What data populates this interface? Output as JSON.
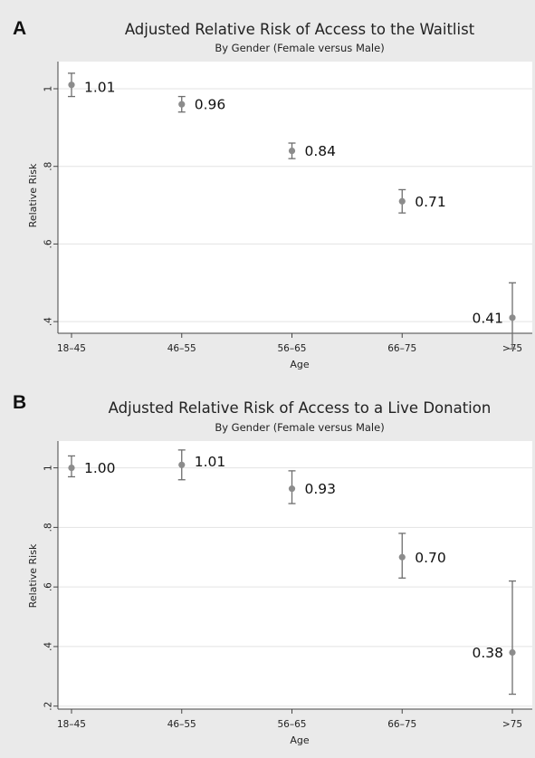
{
  "chart_data": [
    {
      "type": "scatter",
      "panel": "A",
      "title": "Adjusted Relative Risk of Access to the Waitlist",
      "subtitle": "By Gender (Female versus Male)",
      "xlabel": "Age",
      "ylabel": "Relative Risk",
      "categories": [
        "18–45",
        "46–55",
        "56–65",
        "66–75",
        ">75"
      ],
      "values": [
        1.01,
        0.96,
        0.84,
        0.71,
        0.41
      ],
      "ci_lower": [
        0.98,
        0.94,
        0.82,
        0.68,
        0.33
      ],
      "ci_upper": [
        1.04,
        0.98,
        0.86,
        0.74,
        0.5
      ],
      "point_labels": [
        "1.01",
        "0.96",
        "0.84",
        "0.71",
        "0.41"
      ],
      "ylim": [
        0.37,
        1.07
      ],
      "yticks": [
        0.4,
        0.6,
        0.8,
        1.0
      ],
      "ytick_labels": [
        ".4",
        ".6",
        ".8",
        "1"
      ],
      "grid": true,
      "point_color": "#8c8c8c"
    },
    {
      "type": "scatter",
      "panel": "B",
      "title": "Adjusted Relative Risk of Access to a Live Donation",
      "subtitle": "By Gender (Female versus Male)",
      "xlabel": "Age",
      "ylabel": "Relative Risk",
      "categories": [
        "18–45",
        "46–55",
        "56–65",
        "66–75",
        ">75"
      ],
      "values": [
        1.0,
        1.01,
        0.93,
        0.7,
        0.38
      ],
      "ci_lower": [
        0.97,
        0.96,
        0.88,
        0.63,
        0.24
      ],
      "ci_upper": [
        1.04,
        1.06,
        0.99,
        0.78,
        0.62
      ],
      "point_labels": [
        "1.00",
        "1.01",
        "0.93",
        "0.70",
        "0.38"
      ],
      "ylim": [
        0.19,
        1.09
      ],
      "yticks": [
        0.2,
        0.4,
        0.6,
        0.8,
        1.0
      ],
      "ytick_labels": [
        ".2",
        ".4",
        ".6",
        ".8",
        "1"
      ],
      "grid": true,
      "point_color": "#8c8c8c"
    }
  ]
}
